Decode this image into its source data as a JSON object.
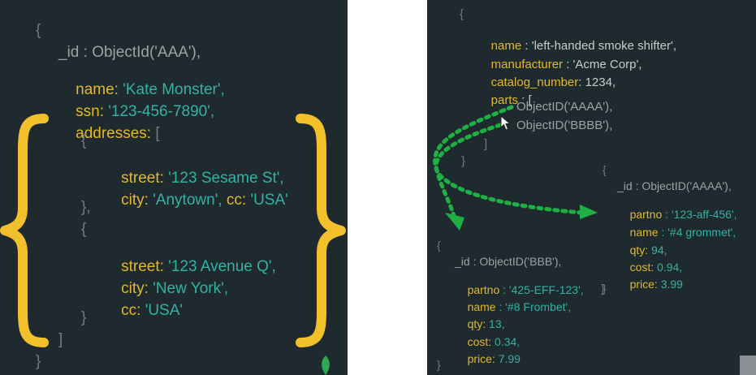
{
  "left_doc": {
    "open_brace": "{",
    "id_line": "_id : ObjectId('AAA'),",
    "name_key": "name:",
    "name_val": "'Kate Monster',",
    "ssn_key": "ssn:",
    "ssn_val": "'123-456-7890',",
    "addresses_key": "addresses:",
    "addresses_open": "[",
    "addr_open_1": "{",
    "addr1_street_key": "street:",
    "addr1_street_val": "'123 Sesame St',",
    "addr1_city_key": "city:",
    "addr1_city_val": "'Anytown',",
    "addr1_cc_key": "cc:",
    "addr1_cc_val": "'USA'",
    "addr_close_1": "},",
    "addr_open_2": "{",
    "addr2_street_key": "street:",
    "addr2_street_val": "'123 Avenue Q',",
    "addr2_city_key": "city:",
    "addr2_city_val": "'New York',",
    "addr2_cc_key": "cc:",
    "addr2_cc_val": "'USA'",
    "addr_close_2": "}",
    "addresses_close": "]",
    "close_brace": "}"
  },
  "product_doc": {
    "open_brace": "{",
    "name_key": "name",
    "name_val": ": 'left-handed smoke shifter',",
    "manufacturer_key": "manufacturer",
    "manufacturer_val": ": 'Acme Corp',",
    "catalog_key": "catalog_number",
    "catalog_val": ": 1234,",
    "parts_key": "parts",
    "parts_open": ": [",
    "ref_1": "ObjectID('AAAA'),",
    "ref_2": "ObjectID('BBBB'),",
    "parts_close": "]",
    "close_brace": "}"
  },
  "part_aaaa": {
    "open_brace": "{",
    "id_line": "_id : ObjectID('AAAA'),",
    "partno_key": "partno",
    "partno_val": ": '123-aff-456',",
    "name_key": "name",
    "name_val": ": '#4 grommet',",
    "qty_key": "qty:",
    "qty_val": "94,",
    "cost_key": "cost:",
    "cost_val": "0.94,",
    "price_key": "price:",
    "price_val": "3.99",
    "close_brace": "}"
  },
  "part_bbb": {
    "open_brace": "{",
    "id_line": "_id : ObjectID('BBB'),",
    "partno_key": "partno",
    "partno_val": ": '425-EFF-123',",
    "name_key": "name",
    "name_val": ": '#8 Frombet',",
    "qty_key": "qty:",
    "qty_val": "13,",
    "cost_key": "cost:",
    "cost_val": "0.34,",
    "price_key": "price:",
    "price_val": "7.99",
    "close_brace": "}"
  },
  "colors": {
    "background": "#ffffff",
    "panel": "#1f2a2f",
    "key_yellow": "#e3b92a",
    "value_teal": "#31b2a4",
    "arrow_green": "#1fb044"
  },
  "icons": [
    "big-brace-left-icon",
    "big-brace-right-icon",
    "dotted-arrow-icon",
    "cursor-icon",
    "leaf-icon"
  ]
}
